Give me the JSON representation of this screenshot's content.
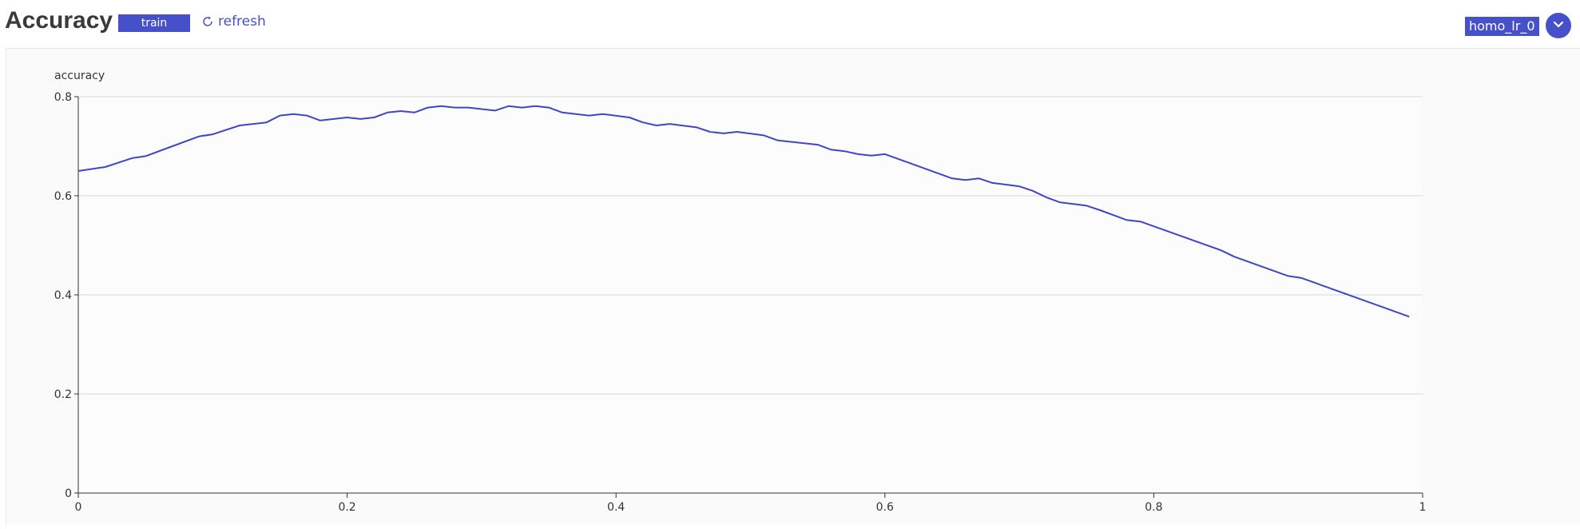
{
  "header": {
    "title": "Accuracy",
    "tag": "train",
    "refresh_label": "refresh",
    "model_name": "homo_lr_0"
  },
  "colors": {
    "accent": "#4650c8",
    "line": "#3f46c6",
    "grid": "#d9d9d9",
    "panel": "#fafafa"
  },
  "icons": {
    "refresh": "refresh-icon",
    "dropdown": "chevron-down-icon"
  },
  "chart_data": {
    "type": "line",
    "title": "",
    "xlabel": "",
    "ylabel": "accuracy",
    "xlim": [
      0,
      1
    ],
    "ylim": [
      0,
      0.8
    ],
    "x_ticks": [
      "0",
      "0.2",
      "0.4",
      "0.6",
      "0.8",
      "1"
    ],
    "y_ticks": [
      "0",
      "0.2",
      "0.4",
      "0.6",
      "0.8"
    ],
    "grid": "horizontal",
    "series": [
      {
        "x": [
          0,
          0.02,
          0.04,
          0.05,
          0.07,
          0.09,
          0.1,
          0.12,
          0.14,
          0.15,
          0.16,
          0.17,
          0.18,
          0.2,
          0.21,
          0.22,
          0.23,
          0.24,
          0.25,
          0.26,
          0.27,
          0.28,
          0.29,
          0.31,
          0.32,
          0.33,
          0.34,
          0.35,
          0.36,
          0.38,
          0.39,
          0.41,
          0.42,
          0.43,
          0.44,
          0.46,
          0.47,
          0.48,
          0.49,
          0.51,
          0.52,
          0.55,
          0.56,
          0.57,
          0.58,
          0.59,
          0.6,
          0.65,
          0.66,
          0.67,
          0.68,
          0.7,
          0.71,
          0.72,
          0.73,
          0.75,
          0.76,
          0.78,
          0.79,
          0.85,
          0.86,
          0.9,
          0.91,
          0.99
        ],
        "values": [
          0.65,
          0.658,
          0.676,
          0.68,
          0.7,
          0.72,
          0.724,
          0.742,
          0.748,
          0.762,
          0.765,
          0.762,
          0.752,
          0.758,
          0.755,
          0.758,
          0.768,
          0.771,
          0.768,
          0.778,
          0.781,
          0.778,
          0.778,
          0.772,
          0.781,
          0.778,
          0.781,
          0.778,
          0.768,
          0.762,
          0.765,
          0.758,
          0.748,
          0.742,
          0.745,
          0.738,
          0.729,
          0.726,
          0.729,
          0.722,
          0.712,
          0.703,
          0.693,
          0.69,
          0.684,
          0.681,
          0.684,
          0.635,
          0.632,
          0.635,
          0.626,
          0.619,
          0.61,
          0.597,
          0.587,
          0.58,
          0.571,
          0.551,
          0.548,
          0.49,
          0.477,
          0.438,
          0.434,
          0.356
        ]
      }
    ]
  }
}
